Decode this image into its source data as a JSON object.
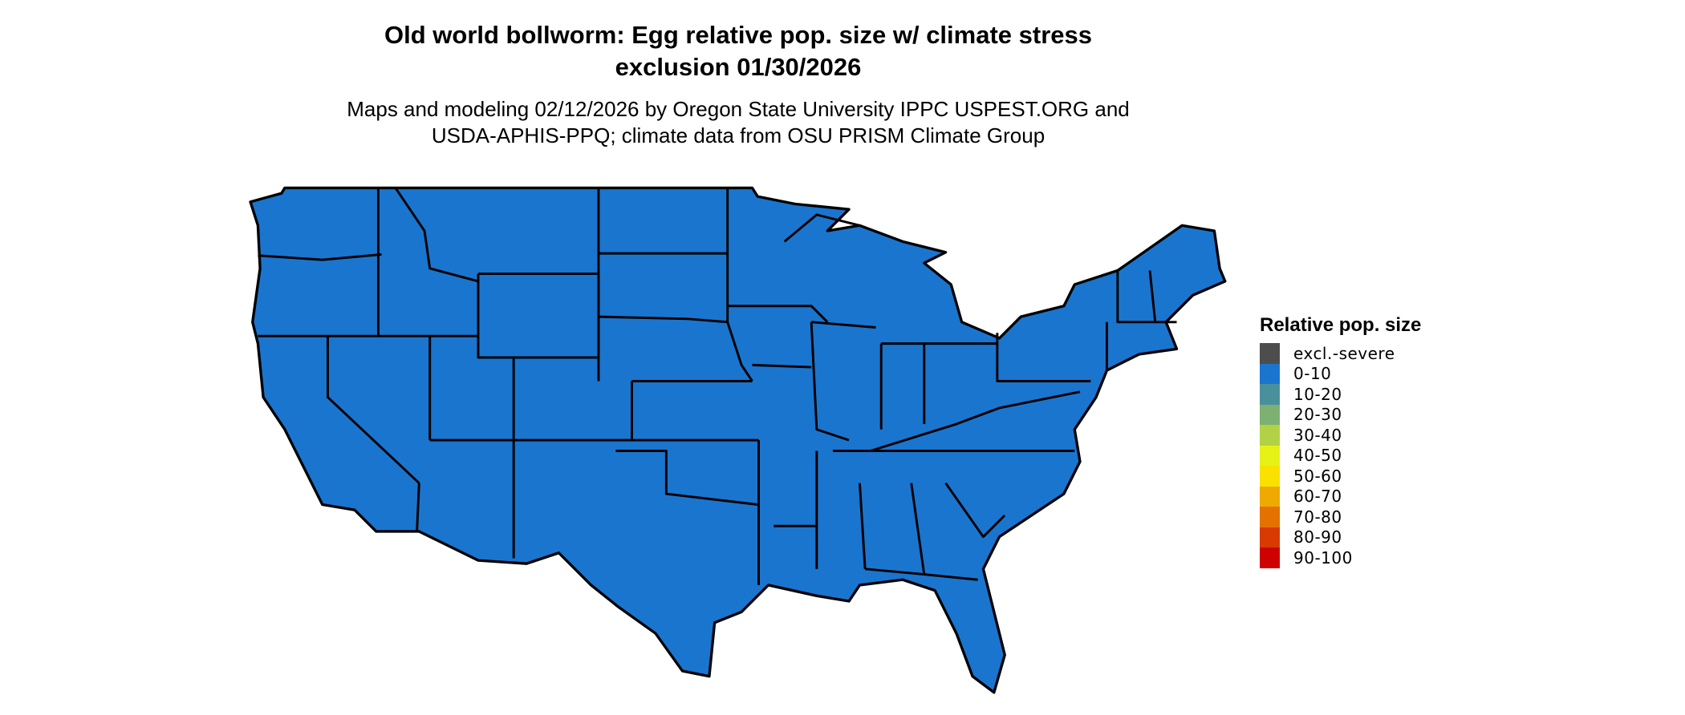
{
  "title_line1": "Old world bollworm: Egg relative pop. size w/ climate stress",
  "title_line2": "exclusion 01/30/2026",
  "subtitle_line1": "Maps and modeling 02/12/2026 by Oregon State University IPPC USPEST.ORG and",
  "subtitle_line2": "USDA-APHIS-PPQ; climate data from OSU PRISM Climate Group",
  "map": {
    "region": "Contiguous United States",
    "fill_class": "0-10",
    "fill_color": "#1a75cf",
    "border_color": "#000000"
  },
  "legend": {
    "title": "Relative pop. size",
    "items": [
      {
        "label": "excl.-severe",
        "color": "#4d4d4d"
      },
      {
        "label": "0-10",
        "color": "#1a75cf"
      },
      {
        "label": "10-20",
        "color": "#4a909c"
      },
      {
        "label": "20-30",
        "color": "#7db072"
      },
      {
        "label": "30-40",
        "color": "#b3d147"
      },
      {
        "label": "40-50",
        "color": "#e6f217"
      },
      {
        "label": "50-60",
        "color": "#fae100"
      },
      {
        "label": "60-70",
        "color": "#efa900"
      },
      {
        "label": "70-80",
        "color": "#e47200"
      },
      {
        "label": "80-90",
        "color": "#d93a00"
      },
      {
        "label": "90-100",
        "color": "#cf0000"
      }
    ]
  }
}
